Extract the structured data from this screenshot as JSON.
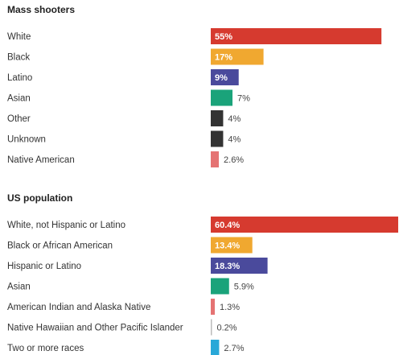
{
  "chart_data": [
    {
      "type": "bar",
      "orientation": "horizontal",
      "title": "Mass shooters",
      "value_suffix": "%",
      "categories": [
        "White",
        "Black",
        "Latino",
        "Asian",
        "Other",
        "Unknown",
        "Native American"
      ],
      "values": [
        55,
        17,
        9,
        7,
        4,
        4,
        2.6
      ],
      "value_labels": [
        "55%",
        "17%",
        "9%",
        "7%",
        "4%",
        "4%",
        "2.6%"
      ],
      "colors": [
        "#d63a2f",
        "#f0a830",
        "#4a4a9c",
        "#1aa37a",
        "#333333",
        "#333333",
        "#e57373"
      ],
      "xlim": [
        0,
        60.4
      ],
      "grid": false,
      "legend": "none"
    },
    {
      "type": "bar",
      "orientation": "horizontal",
      "title": "US population",
      "value_suffix": "%",
      "categories": [
        "White, not Hispanic or Latino",
        "Black or African American",
        "Hispanic or Latino",
        "Asian",
        "American Indian and Alaska Native",
        "Native Hawaiian and Other Pacific Islander",
        "Two or more races"
      ],
      "values": [
        60.4,
        13.4,
        18.3,
        5.9,
        1.3,
        0.2,
        2.7
      ],
      "value_labels": [
        "60.4%",
        "13.4%",
        "18.3%",
        "5.9%",
        "1.3%",
        "0.2%",
        "2.7%"
      ],
      "colors": [
        "#d63a2f",
        "#f0a830",
        "#4a4a9c",
        "#1aa37a",
        "#e57373",
        "#bbbbbb",
        "#29a8d8"
      ],
      "xlim": [
        0,
        60.4
      ],
      "grid": false,
      "legend": "none"
    }
  ]
}
